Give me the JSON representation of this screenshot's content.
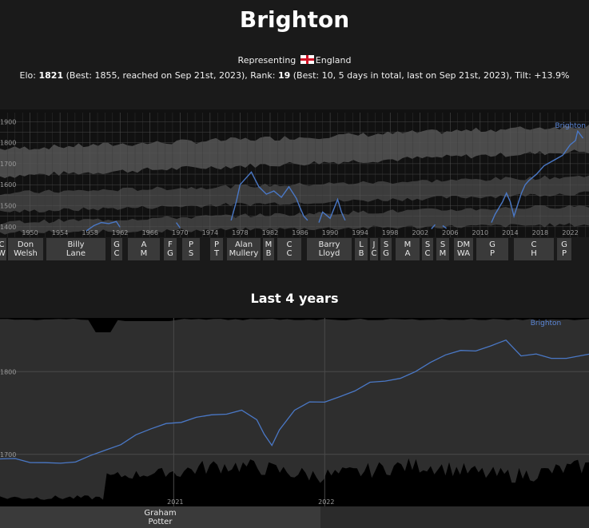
{
  "header": {
    "title": "Brighton",
    "representing_label": "Representing",
    "country": "England",
    "flag_icon": "england-flag-icon",
    "elo_label": "Elo:",
    "elo_value": "1821",
    "elo_best": "(Best: 1855, reached on Sep 21st, 2023), Rank:",
    "rank_value": "19",
    "rank_best": "(Best: 10, 5 days in total, last on Sep 21st, 2023), Tilt: +13.9%"
  },
  "colors": {
    "line": "#4a78c6",
    "band": "#4a4a4a",
    "plot_bg": "#111111",
    "manager_tag": "#3a3a3a"
  },
  "managers": [
    {
      "l1": "C",
      "l2": "W"
    },
    {
      "l1": "Don",
      "l2": "Welsh"
    },
    {
      "l1": "Billy",
      "l2": "Lane"
    },
    {
      "l1": "G",
      "l2": "C"
    },
    {
      "l1": "A",
      "l2": "M"
    },
    {
      "l1": "F",
      "l2": "G"
    },
    {
      "l1": "P",
      "l2": "S"
    },
    {
      "l1": "P",
      "l2": "T"
    },
    {
      "l1": "Alan",
      "l2": "Mullery"
    },
    {
      "l1": "M",
      "l2": "B"
    },
    {
      "l1": "C",
      "l2": "C"
    },
    {
      "l1": "Barry",
      "l2": "Lloyd"
    },
    {
      "l1": "L",
      "l2": "B"
    },
    {
      "l1": "J",
      "l2": "C"
    },
    {
      "l1": "S",
      "l2": "G"
    },
    {
      "l1": "M",
      "l2": "A"
    },
    {
      "l1": "S",
      "l2": "C"
    },
    {
      "l1": "S",
      "l2": "M"
    },
    {
      "l1": "DM",
      "l2": "WA"
    },
    {
      "l1": "G",
      "l2": "P"
    },
    {
      "l1": "C",
      "l2": "H"
    },
    {
      "l1": "G",
      "l2": "P"
    }
  ],
  "subtitle": "Last 4 years",
  "managers_recent": [
    {
      "l1": "Graham",
      "l2": "Potter"
    }
  ],
  "chart_data": [
    {
      "type": "line",
      "series": [
        {
          "name": "Brighton",
          "x": [
            1957.5,
            1958.5,
            1959.5,
            1960.5,
            1961.5,
            1962.0,
            null,
            1969.5,
            1970.0,
            null,
            1976.8,
            1977.5,
            1978.0,
            1979.0,
            1979.5,
            1980.5,
            1981.5,
            1982.5,
            1983.5,
            1984.5,
            1985.5,
            1986.0,
            1986.5,
            1987.0,
            null,
            1988.5,
            1989.0,
            1990.0,
            1991.0,
            1991.5,
            1992.0,
            null,
            2003.5,
            2004.0,
            null,
            2005.0,
            2005.5,
            null,
            2011.5,
            2012.0,
            2013.0,
            2013.5,
            2014.0,
            2014.5,
            2015.5,
            2016.0,
            2016.5,
            2017.5,
            2018.5,
            2019.0,
            2020.0,
            2021.0,
            2022.0,
            2022.7,
            2023.0,
            2023.7
          ],
          "y": [
            1380,
            1405,
            1420,
            1415,
            1425,
            1398,
            null,
            1420,
            1395,
            null,
            1430,
            1520,
            1600,
            1640,
            1660,
            1590,
            1555,
            1570,
            1540,
            1590,
            1535,
            1490,
            1450,
            1430,
            null,
            1420,
            1470,
            1440,
            1530,
            1470,
            1430,
            null,
            1390,
            1410,
            null,
            1405,
            1392,
            null,
            1420,
            1460,
            1520,
            1560,
            1520,
            1450,
            1560,
            1600,
            1620,
            1650,
            1690,
            1700,
            1720,
            1740,
            1790,
            1810,
            1855,
            1821
          ]
        }
      ],
      "xlim": [
        1946,
        2024.5
      ],
      "ylim": [
        1350,
        1920
      ],
      "xticks": [
        1950,
        1954,
        1958,
        1962,
        1966,
        1970,
        1974,
        1978,
        1982,
        1986,
        1990,
        1994,
        1998,
        2002,
        2006,
        2010,
        2014,
        2018,
        2022
      ],
      "yticks": [
        1400,
        1500,
        1600,
        1700,
        1800,
        1900
      ],
      "grid": true,
      "bands": [
        {
          "y0": [
            1630,
            1760,
            1780,
            1800
          ],
          "y1": [
            1800,
            1840,
            1860,
            1890
          ],
          "x": [
            1946,
            1970,
            2000,
            2024.5
          ]
        }
      ]
    },
    {
      "type": "line",
      "series": [
        {
          "name": "Brighton",
          "x": [
            2019.85,
            2019.95,
            2020.05,
            2020.15,
            2020.25,
            2020.35,
            2020.45,
            2020.55,
            2020.65,
            2020.75,
            2020.85,
            2020.95,
            2021.05,
            2021.15,
            2021.25,
            2021.35,
            2021.45,
            2021.55,
            2021.6,
            2021.65,
            2021.7,
            2021.8,
            2021.9,
            2022.0,
            2022.1,
            2022.2,
            2022.3,
            2022.4,
            2022.5,
            2022.6,
            2022.7,
            2022.8,
            2022.9,
            2023.0,
            2023.1,
            2023.15,
            2023.2,
            2023.3,
            2023.4,
            2023.5,
            2023.6,
            2023.75
          ],
          "y": [
            1696,
            1694,
            1690,
            1688,
            1688,
            1692,
            1699,
            1706,
            1712,
            1722,
            1730,
            1736,
            1740,
            1744,
            1746,
            1748,
            1752,
            1742,
            1726,
            1710,
            1728,
            1752,
            1762,
            1762,
            1769,
            1775,
            1786,
            1790,
            1792,
            1800,
            1810,
            1822,
            1826,
            1826,
            1832,
            1836,
            1840,
            1818,
            1822,
            1815,
            1818,
            1821
          ]
        }
      ],
      "xlim": [
        2019.85,
        2023.75
      ],
      "ylim": [
        1637,
        1865
      ],
      "xticks": [
        2021,
        2022
      ],
      "yticks": [
        1700,
        1800
      ],
      "grid": true
    }
  ]
}
